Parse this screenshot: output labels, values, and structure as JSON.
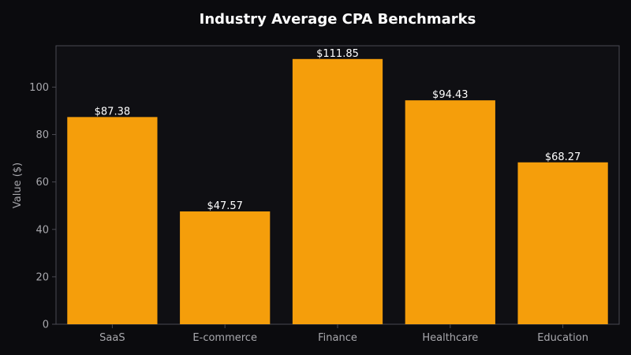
{
  "chart_data": {
    "type": "bar",
    "title": "Industry Average CPA Benchmarks",
    "xlabel": "",
    "ylabel": "Value ($)",
    "categories": [
      "SaaS",
      "E-commerce",
      "Finance",
      "Healthcare",
      "Education"
    ],
    "values": [
      87.38,
      47.57,
      111.85,
      94.43,
      68.27
    ],
    "data_labels": [
      "$87.38",
      "$47.57",
      "$111.85",
      "$94.43",
      "$68.27"
    ],
    "ylim": [
      0,
      117.44
    ],
    "yticks": [
      0,
      20,
      40,
      60,
      80,
      100
    ],
    "grid": false,
    "colors": {
      "background": "#0b0b0e",
      "plot_background": "#0f0f13",
      "bar": "#f59e0b",
      "axis": "#4a4a52",
      "text": "#ffffff",
      "tick_text": "#a8a8ad"
    }
  }
}
